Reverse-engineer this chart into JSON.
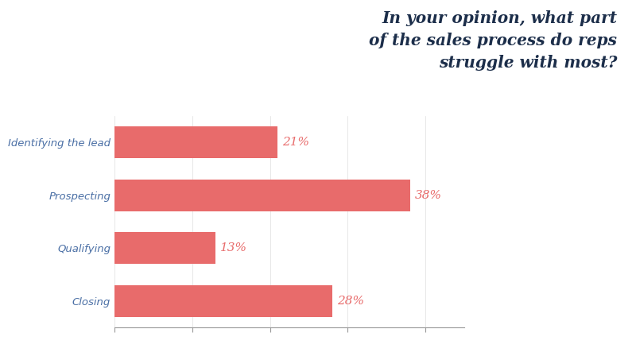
{
  "categories": [
    "Identifying the lead",
    "Prospecting",
    "Qualifying",
    "Closing"
  ],
  "values": [
    21,
    38,
    13,
    28
  ],
  "bar_color": "#E86B6B",
  "label_color": "#E86B6B",
  "category_color": "#4A6FA5",
  "title_lines": [
    "In your opinion, what part",
    "of the sales process do reps",
    "struggle with most?"
  ],
  "title_color": "#1C2E4A",
  "background_color": "#FFFFFF",
  "xlim": [
    0,
    45
  ],
  "bar_height": 0.6,
  "label_fontsize": 11,
  "category_fontsize": 9.5,
  "title_fontsize": 14.5,
  "tick_color": "#999999",
  "spine_color": "#999999"
}
